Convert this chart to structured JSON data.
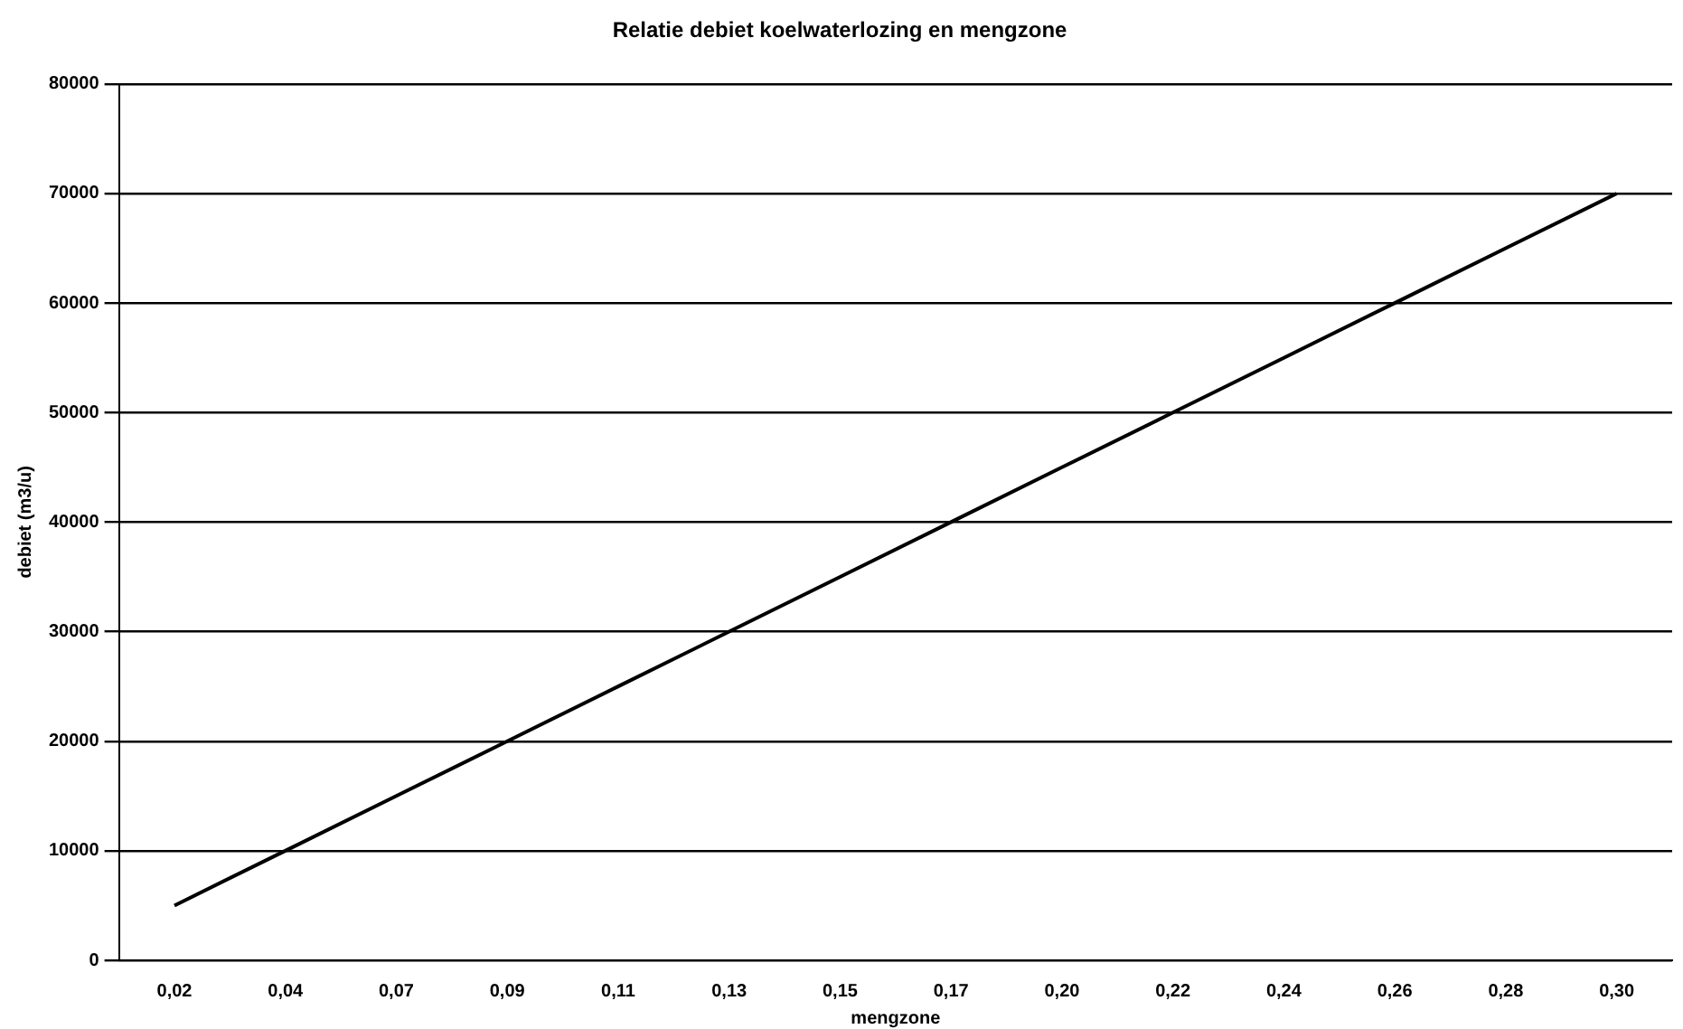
{
  "chart_data": {
    "type": "line",
    "title": "Relatie debiet koelwaterlozing en mengzone",
    "xlabel": "mengzone",
    "ylabel": "debiet (m3/u)",
    "categories": [
      "0,02",
      "0,04",
      "0,07",
      "0,09",
      "0,11",
      "0,13",
      "0,15",
      "0,17",
      "0,20",
      "0,22",
      "0,24",
      "0,26",
      "0,28",
      "0,30"
    ],
    "series": [
      {
        "color": "#000000",
        "values": [
          5000,
          10000,
          15000,
          20000,
          25000,
          30000,
          35000,
          40000,
          45000,
          50000,
          55000,
          60000,
          65000,
          70000
        ]
      }
    ],
    "ylim": [
      0,
      80000
    ],
    "yticks": [
      0,
      10000,
      20000,
      30000,
      40000,
      50000,
      60000,
      70000,
      80000
    ],
    "grid": "y",
    "legend": false,
    "marker": "none",
    "line_style": "solid"
  }
}
